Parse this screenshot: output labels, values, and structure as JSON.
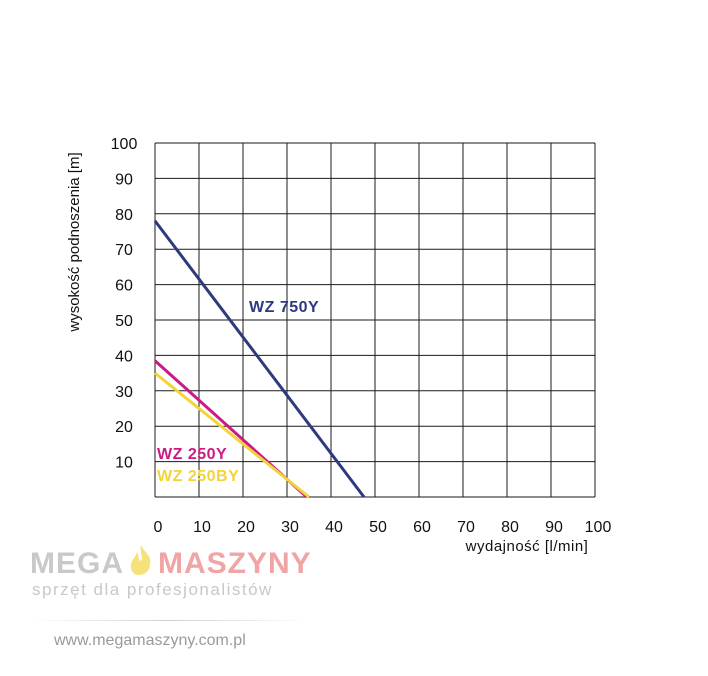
{
  "chart_data": {
    "type": "line",
    "title": "",
    "xlabel": "wydajność [l/min]",
    "ylabel": "wysokość podnoszenia [m]",
    "xlim": [
      0,
      100
    ],
    "ylim": [
      0,
      100
    ],
    "x_ticks": [
      "0",
      "10",
      "20",
      "30",
      "40",
      "50",
      "60",
      "70",
      "80",
      "90",
      "100"
    ],
    "y_ticks": [
      "10",
      "20",
      "30",
      "40",
      "50",
      "60",
      "70",
      "80",
      "90",
      "100"
    ],
    "grid": true,
    "series": [
      {
        "name": "WZ 750Y",
        "color": "#2e3a7e",
        "points": [
          [
            0,
            78
          ],
          [
            47.5,
            0
          ]
        ]
      },
      {
        "name": "WZ 250Y",
        "color": "#cc1a85",
        "points": [
          [
            0,
            38.5
          ],
          [
            34.5,
            0
          ]
        ]
      },
      {
        "name": "WZ 250BY",
        "color": "#f2d43a",
        "points": [
          [
            0,
            35
          ],
          [
            35,
            0
          ]
        ]
      }
    ]
  },
  "watermark": {
    "brand_left": "MEGA",
    "brand_right": "MASZYNY",
    "tagline": "sprzęt dla profesjonalistów",
    "url": "www.megamaszyny.com.pl",
    "colors": {
      "mega": "#c9c9c9",
      "maszyny": "#f0a4a4",
      "flame": "#f6e27a"
    }
  }
}
